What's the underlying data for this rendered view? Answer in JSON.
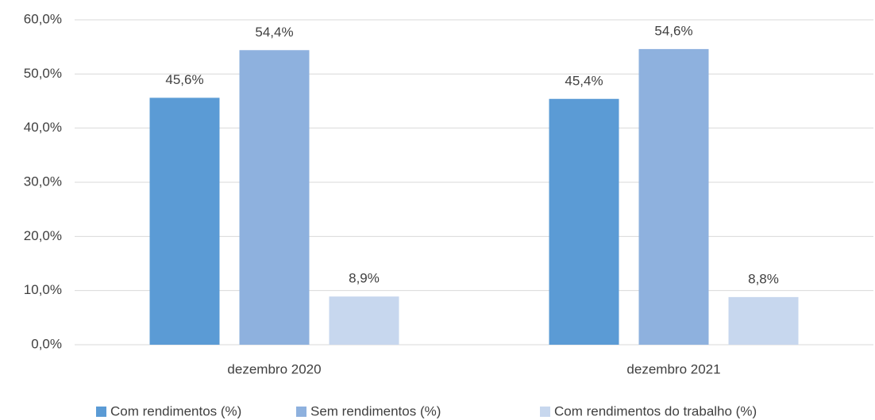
{
  "chart_data": {
    "type": "bar",
    "categories": [
      "dezembro 2020",
      "dezembro 2021"
    ],
    "series": [
      {
        "name": "Com rendimentos (%)",
        "color": "#5b9bd5",
        "values": [
          45.6,
          45.4
        ],
        "value_labels": [
          "45,6%",
          "45,4%"
        ]
      },
      {
        "name": "Sem rendimentos (%)",
        "color": "#8eb1de",
        "values": [
          54.4,
          54.6
        ],
        "value_labels": [
          "54,4%",
          "54,6%"
        ]
      },
      {
        "name": "Com rendimentos do trabalho (%)",
        "color": "#c7d7ee",
        "values": [
          8.9,
          8.8
        ],
        "value_labels": [
          "8,9%",
          "8,8%"
        ]
      }
    ],
    "ylim": [
      0,
      60
    ],
    "yticks": [
      {
        "value": 0,
        "label": "0,0%"
      },
      {
        "value": 10,
        "label": "10,0%"
      },
      {
        "value": 20,
        "label": "20,0%"
      },
      {
        "value": 30,
        "label": "30,0%"
      },
      {
        "value": 40,
        "label": "40,0%"
      },
      {
        "value": 50,
        "label": "50,0%"
      },
      {
        "value": 60,
        "label": "60,0%"
      }
    ],
    "grid": true,
    "legend": "bottom"
  }
}
